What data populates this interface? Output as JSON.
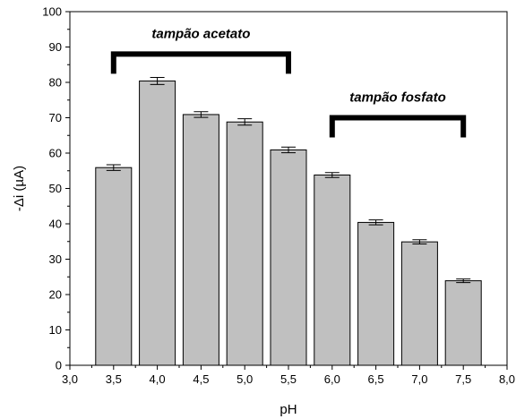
{
  "chart_data": {
    "type": "bar",
    "x": [
      3.5,
      4.0,
      4.5,
      5.0,
      5.5,
      6.0,
      6.5,
      7.0,
      7.5
    ],
    "values": [
      55.9,
      80.4,
      70.9,
      68.8,
      60.9,
      53.8,
      40.4,
      34.9,
      23.9
    ],
    "errors": [
      0.8,
      1.0,
      0.8,
      0.9,
      0.8,
      0.7,
      0.7,
      0.6,
      0.5
    ],
    "xlabel": "pH",
    "ylabel": "-Δi (µA)",
    "xlim": [
      3.0,
      8.0
    ],
    "ylim": [
      0,
      100
    ],
    "xticks": [
      "3,0",
      "3,5",
      "4,0",
      "4,5",
      "5,0",
      "5,5",
      "6,0",
      "6,5",
      "7,0",
      "7,5",
      "8,0"
    ],
    "yticks": [
      "0",
      "10",
      "20",
      "30",
      "40",
      "50",
      "60",
      "70",
      "80",
      "90",
      "100"
    ],
    "bar_color": "#c0c0c0",
    "grid": false,
    "annotations": [
      {
        "text": "tampão acetato",
        "x_start": 3.5,
        "x_end": 5.5,
        "y": 88
      },
      {
        "text": "tampão fosfato",
        "x_start": 6.0,
        "x_end": 7.5,
        "y": 70
      }
    ]
  }
}
